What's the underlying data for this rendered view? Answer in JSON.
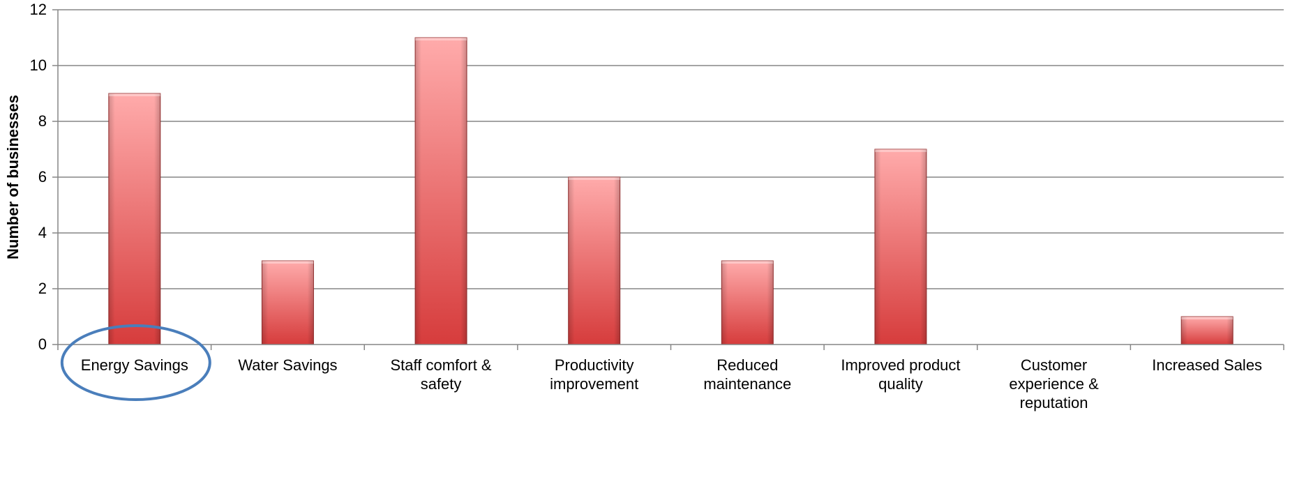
{
  "chart_data": {
    "type": "bar",
    "title": "",
    "xlabel": "",
    "ylabel": "Number of businesses",
    "ylim": [
      0,
      12
    ],
    "yticks": [
      0,
      2,
      4,
      6,
      8,
      10,
      12
    ],
    "grid": true,
    "legend": "none",
    "categories": [
      "Energy Savings",
      "Water Savings",
      "Staff comfort & safety",
      "Productivity improvement",
      "Reduced maintenance",
      "Improved product quality",
      "Customer experience & reputation",
      "Increased Sales"
    ],
    "category_lines": [
      [
        "Energy Savings"
      ],
      [
        "Water Savings"
      ],
      [
        "Staff comfort &",
        "safety"
      ],
      [
        "Productivity",
        "improvement"
      ],
      [
        "Reduced",
        "maintenance"
      ],
      [
        "Improved product",
        "quality"
      ],
      [
        "Customer",
        "experience &",
        "reputation"
      ],
      [
        "Increased Sales"
      ]
    ],
    "values": [
      9,
      3,
      11,
      6,
      3,
      7,
      0,
      1
    ],
    "highlighted_category": "Energy Savings",
    "colors": {
      "bar_light": "#ffabab",
      "bar_dark": "#d63c3c",
      "bar_edge": "#9b2f2f",
      "gridline": "#868686",
      "highlight_ellipse": "#4a7ebb"
    }
  }
}
